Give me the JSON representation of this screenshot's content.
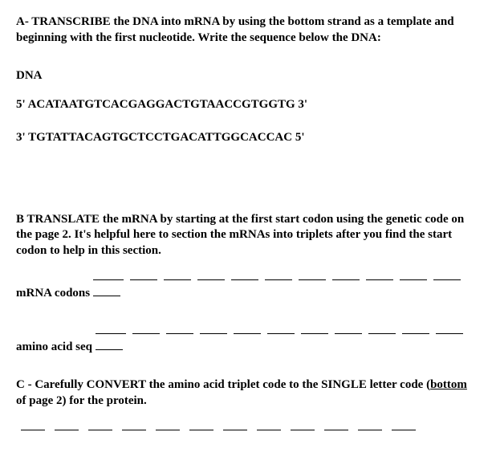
{
  "sectionA": {
    "heading": "A- TRANSCRIBE the DNA into mRNA by using the bottom strand as a template and beginning with the first nucleotide. Write the sequence below the DNA:",
    "dna_label": "DNA",
    "strand_top": "5' ACATAATGTCACGAGGACTGTAACCGTGGTG 3'",
    "strand_bottom": "3' TGTATTACAGTGCTCCTGACATTGGCACCAC 5'"
  },
  "sectionB": {
    "heading": "B TRANSLATE the mRNA by starting at the first start codon using the genetic code on the page 2. It's helpful here to section the mRNAs into triplets after you find the start codon to help in this section.",
    "mrna_label": "mRNA codons",
    "amino_label": "amino acid seq"
  },
  "sectionC": {
    "prefix": "C - Carefully CONVERT the amino acid triplet code to the SINGLE letter code (",
    "underlined": "bottom",
    "suffix": " of page 2) for the protein."
  },
  "blank_counts": {
    "mrna": 12,
    "amino": 12,
    "c_row": 12
  }
}
